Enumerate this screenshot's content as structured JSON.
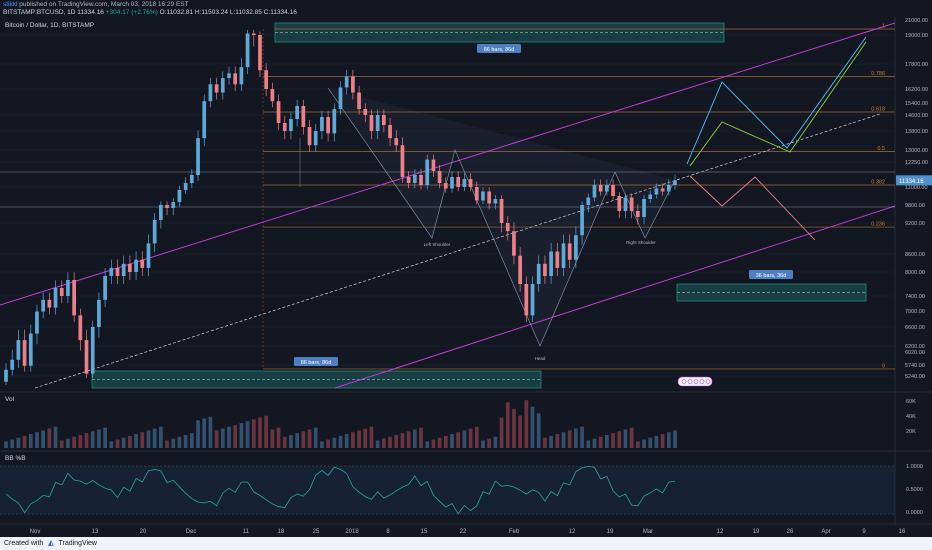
{
  "header": {
    "user": "stikki",
    "published": "published on TradingView.com, March 03, 2018 16:29 EST",
    "symbol": "BITSTAMP:BTCUSD, 1D",
    "last": "11334.16",
    "change": "+304.17 (+2.76%)",
    "ohlc": "O:11032.81 H:11503.24 L:11032.85 C:11334.16",
    "chart_title": "Bitcoin / Dollar, 1D, BITSTAMP"
  },
  "panes": {
    "volume_title": "Vol",
    "indicator_title": "BB %B"
  },
  "footer": {
    "created_with": "Created with",
    "brand": "TradingView"
  },
  "colors": {
    "background": "#131722",
    "up_candle": "#5ea9d8",
    "down_candle": "#ef7f86",
    "channel": "#c23bd4",
    "fib_line": "#a56a2e",
    "projection_cyan": "#4fc3f7",
    "projection_green": "#8bd13a",
    "projection_red": "#f08080",
    "range_box": "#26a69a",
    "bb_line": "#26a69a"
  },
  "chart_data": {
    "type": "candlestick",
    "title": "Bitcoin / Dollar, 1D, BITSTAMP",
    "x_ticks": [
      "Nov",
      "13",
      "20",
      "Dec",
      "11",
      "18",
      "25",
      "2018",
      "8",
      "15",
      "22",
      "Feb",
      "12",
      "19",
      "Mar",
      "12",
      "19",
      "26",
      "Apr",
      "9",
      "16"
    ],
    "y_ticks": [
      "21000.00",
      "19000.00",
      "17800.00",
      "16200.00",
      "15400.00",
      "14600.00",
      "13800.00",
      "13000.00",
      "12250.00",
      "11000.00",
      "9800.00",
      "9200.00",
      "8600.00",
      "8000.00",
      "7400.00",
      "7000.00",
      "6600.00",
      "6200.00",
      "6020.00",
      "5740.00",
      "5240.00"
    ],
    "last_price_label": "11334.16",
    "fib_levels": [
      {
        "label": "1",
        "price": 19800
      },
      {
        "label": "0.786",
        "price": 17000
      },
      {
        "label": "0.618",
        "price": 14800
      },
      {
        "label": "0.5",
        "price": 12900
      },
      {
        "label": "0.382",
        "price": 11100
      },
      {
        "label": "0.236",
        "price": 9100
      },
      {
        "label": "0",
        "price": 5920
      }
    ],
    "annotations": [
      "86 bars, 86d",
      "86 bars, 86d",
      "36 bars, 36d",
      "Left Shoulder",
      "Right Shoulder",
      "Head"
    ],
    "volume_ticks": [
      "60K",
      "40K",
      "20K"
    ],
    "bb_ticks": [
      "1.0000",
      "0.5000",
      "0.0000"
    ],
    "candles": [
      [
        5500,
        5900
      ],
      [
        5900,
        6100
      ],
      [
        6100,
        6400
      ],
      [
        6400,
        6000
      ],
      [
        6000,
        6500
      ],
      [
        6500,
        7000
      ],
      [
        7000,
        7300
      ],
      [
        7300,
        7100
      ],
      [
        7100,
        7600
      ],
      [
        7600,
        7400
      ],
      [
        7400,
        7800
      ],
      [
        7800,
        6900
      ],
      [
        6900,
        6400
      ],
      [
        6400,
        5800
      ],
      [
        5800,
        6600
      ],
      [
        6600,
        7300
      ],
      [
        7300,
        7900
      ],
      [
        7900,
        8100
      ],
      [
        8100,
        7900
      ],
      [
        7900,
        8200
      ],
      [
        8200,
        8000
      ],
      [
        8000,
        8300
      ],
      [
        8300,
        8100
      ],
      [
        8100,
        8700
      ],
      [
        8700,
        9300
      ],
      [
        9300,
        9800
      ],
      [
        9800,
        9700
      ],
      [
        9700,
        10000
      ],
      [
        10000,
        10800
      ],
      [
        10800,
        11200
      ],
      [
        11200,
        11600
      ],
      [
        11600,
        13500
      ],
      [
        13500,
        15500
      ],
      [
        15500,
        16500
      ],
      [
        16500,
        16000
      ],
      [
        16000,
        16900
      ],
      [
        16900,
        17200
      ],
      [
        17200,
        16500
      ],
      [
        16500,
        17600
      ],
      [
        17600,
        19200
      ],
      [
        19200,
        19000
      ],
      [
        19000,
        17400
      ],
      [
        17400,
        16200
      ],
      [
        16200,
        15500
      ],
      [
        15500,
        14200
      ],
      [
        14200,
        13800
      ],
      [
        13800,
        14400
      ],
      [
        14400,
        15200
      ],
      [
        15200,
        14000
      ],
      [
        14000,
        13200
      ],
      [
        13200,
        13800
      ],
      [
        13800,
        14500
      ],
      [
        14500,
        13700
      ],
      [
        13700,
        15000
      ],
      [
        15000,
        16300
      ],
      [
        16300,
        17000
      ],
      [
        17000,
        16000
      ],
      [
        16000,
        15000
      ],
      [
        15000,
        14600
      ],
      [
        14600,
        13800
      ],
      [
        13800,
        14600
      ],
      [
        14600,
        14100
      ],
      [
        14100,
        13500
      ],
      [
        13500,
        13200
      ],
      [
        13200,
        11500
      ],
      [
        11500,
        11200
      ],
      [
        11200,
        11600
      ],
      [
        11600,
        11100
      ],
      [
        11100,
        12400
      ],
      [
        12400,
        11800
      ],
      [
        11800,
        11200
      ],
      [
        11200,
        10900
      ],
      [
        10900,
        11500
      ],
      [
        11500,
        11000
      ],
      [
        11000,
        11400
      ],
      [
        11400,
        11000
      ],
      [
        11000,
        10100
      ],
      [
        10100,
        10700
      ],
      [
        10700,
        9900
      ],
      [
        9900,
        10200
      ],
      [
        10200,
        9200
      ],
      [
        9200,
        9000
      ],
      [
        9000,
        8400
      ],
      [
        8400,
        7700
      ],
      [
        7700,
        6900
      ],
      [
        6900,
        7700
      ],
      [
        7700,
        8200
      ],
      [
        8200,
        7900
      ],
      [
        7900,
        8500
      ],
      [
        8500,
        8100
      ],
      [
        8100,
        8700
      ],
      [
        8700,
        8300
      ],
      [
        8300,
        8900
      ],
      [
        8900,
        9800
      ],
      [
        9800,
        10300
      ],
      [
        10300,
        11100
      ],
      [
        11100,
        10700
      ],
      [
        10700,
        11100
      ],
      [
        11100,
        10400
      ],
      [
        10400,
        9600
      ],
      [
        9600,
        10300
      ],
      [
        10300,
        9600
      ],
      [
        9600,
        9400
      ],
      [
        9400,
        10200
      ],
      [
        10200,
        10500
      ],
      [
        10500,
        10900
      ],
      [
        10900,
        10700
      ],
      [
        10700,
        11100
      ],
      [
        11100,
        11334
      ]
    ]
  }
}
